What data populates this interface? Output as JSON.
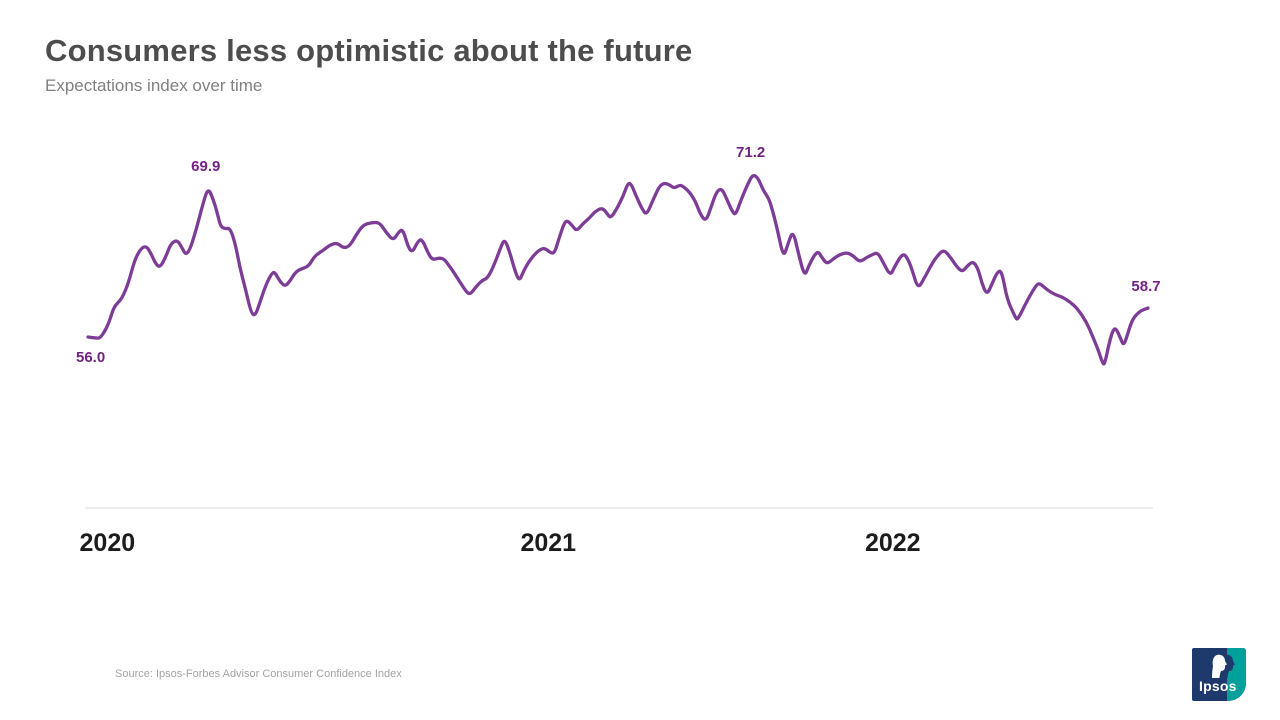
{
  "header": {
    "title": "Consumers less optimistic about the future",
    "subtitle": "Expectations index over time"
  },
  "chart_data": {
    "type": "line",
    "title": "Consumers less optimistic about the future",
    "subtitle": "Expectations index over time",
    "series_name": "Expectations index",
    "line_color": "#7d3c96",
    "annotation_color": "#722282",
    "axis_color": "#d9d9d9",
    "legend": "none",
    "grid": false,
    "y_range_shown": [
      53.4,
      71.2
    ],
    "x_axis": {
      "labels": [
        {
          "label": "2020",
          "pos": -0.008
        },
        {
          "label": "2021",
          "pos": 0.408
        },
        {
          "label": "2022",
          "pos": 0.733
        }
      ]
    },
    "annotations": [
      {
        "label": "56.0",
        "pos": 0.0,
        "value": 56.0,
        "placement": "below-left"
      },
      {
        "label": "69.9",
        "pos": 0.113,
        "value": 69.9,
        "placement": "above"
      },
      {
        "label": "71.2",
        "pos": 0.627,
        "value": 71.2,
        "placement": "above"
      },
      {
        "label": "58.7",
        "pos": 1.0,
        "value": 58.7,
        "placement": "above"
      }
    ],
    "points": [
      [
        0.0,
        56.0
      ],
      [
        0.007,
        55.9
      ],
      [
        0.012,
        55.9
      ],
      [
        0.019,
        57.1
      ],
      [
        0.024,
        58.7
      ],
      [
        0.028,
        59.2
      ],
      [
        0.032,
        59.6
      ],
      [
        0.038,
        61.0
      ],
      [
        0.044,
        63.2
      ],
      [
        0.05,
        64.3
      ],
      [
        0.055,
        64.5
      ],
      [
        0.059,
        63.9
      ],
      [
        0.064,
        62.8
      ],
      [
        0.068,
        62.5
      ],
      [
        0.073,
        63.4
      ],
      [
        0.078,
        64.7
      ],
      [
        0.084,
        65.1
      ],
      [
        0.089,
        64.3
      ],
      [
        0.092,
        63.7
      ],
      [
        0.096,
        64.1
      ],
      [
        0.102,
        66.0
      ],
      [
        0.108,
        68.3
      ],
      [
        0.113,
        69.9
      ],
      [
        0.117,
        69.2
      ],
      [
        0.122,
        67.6
      ],
      [
        0.125,
        66.3
      ],
      [
        0.13,
        66.1
      ],
      [
        0.134,
        66.2
      ],
      [
        0.139,
        64.7
      ],
      [
        0.143,
        62.6
      ],
      [
        0.148,
        60.7
      ],
      [
        0.154,
        58.2
      ],
      [
        0.158,
        58.0
      ],
      [
        0.163,
        59.5
      ],
      [
        0.168,
        60.9
      ],
      [
        0.173,
        61.9
      ],
      [
        0.176,
        62.1
      ],
      [
        0.181,
        61.2
      ],
      [
        0.186,
        60.7
      ],
      [
        0.191,
        61.3
      ],
      [
        0.196,
        62.1
      ],
      [
        0.202,
        62.4
      ],
      [
        0.208,
        62.6
      ],
      [
        0.214,
        63.6
      ],
      [
        0.222,
        64.1
      ],
      [
        0.228,
        64.6
      ],
      [
        0.235,
        64.8
      ],
      [
        0.241,
        64.3
      ],
      [
        0.247,
        64.5
      ],
      [
        0.254,
        65.7
      ],
      [
        0.26,
        66.5
      ],
      [
        0.268,
        66.7
      ],
      [
        0.275,
        66.7
      ],
      [
        0.281,
        65.8
      ],
      [
        0.288,
        65.0
      ],
      [
        0.293,
        65.8
      ],
      [
        0.297,
        66.1
      ],
      [
        0.302,
        64.4
      ],
      [
        0.306,
        63.9
      ],
      [
        0.311,
        64.9
      ],
      [
        0.315,
        65.2
      ],
      [
        0.321,
        63.8
      ],
      [
        0.325,
        63.2
      ],
      [
        0.331,
        63.4
      ],
      [
        0.336,
        63.3
      ],
      [
        0.342,
        62.5
      ],
      [
        0.348,
        61.6
      ],
      [
        0.355,
        60.5
      ],
      [
        0.36,
        59.9
      ],
      [
        0.366,
        60.7
      ],
      [
        0.372,
        61.3
      ],
      [
        0.377,
        61.5
      ],
      [
        0.383,
        62.7
      ],
      [
        0.389,
        64.3
      ],
      [
        0.393,
        65.2
      ],
      [
        0.398,
        63.9
      ],
      [
        0.403,
        62.1
      ],
      [
        0.407,
        61.2
      ],
      [
        0.411,
        62.2
      ],
      [
        0.417,
        63.2
      ],
      [
        0.423,
        63.9
      ],
      [
        0.427,
        64.2
      ],
      [
        0.431,
        64.3
      ],
      [
        0.436,
        63.9
      ],
      [
        0.44,
        63.8
      ],
      [
        0.444,
        65.1
      ],
      [
        0.449,
        66.6
      ],
      [
        0.452,
        66.9
      ],
      [
        0.457,
        66.4
      ],
      [
        0.461,
        65.9
      ],
      [
        0.467,
        66.6
      ],
      [
        0.473,
        67.1
      ],
      [
        0.478,
        67.7
      ],
      [
        0.485,
        68.1
      ],
      [
        0.49,
        67.5
      ],
      [
        0.493,
        67.1
      ],
      [
        0.499,
        68.0
      ],
      [
        0.505,
        69.2
      ],
      [
        0.509,
        70.3
      ],
      [
        0.512,
        70.4
      ],
      [
        0.517,
        69.2
      ],
      [
        0.523,
        67.9
      ],
      [
        0.527,
        67.4
      ],
      [
        0.533,
        68.8
      ],
      [
        0.539,
        70.1
      ],
      [
        0.544,
        70.4
      ],
      [
        0.549,
        70.2
      ],
      [
        0.553,
        69.9
      ],
      [
        0.558,
        70.2
      ],
      [
        0.561,
        70.1
      ],
      [
        0.567,
        69.6
      ],
      [
        0.573,
        68.7
      ],
      [
        0.578,
        67.4
      ],
      [
        0.583,
        66.8
      ],
      [
        0.588,
        68.2
      ],
      [
        0.593,
        69.6
      ],
      [
        0.598,
        69.9
      ],
      [
        0.603,
        68.8
      ],
      [
        0.608,
        67.7
      ],
      [
        0.611,
        67.4
      ],
      [
        0.616,
        68.8
      ],
      [
        0.622,
        70.2
      ],
      [
        0.627,
        71.2
      ],
      [
        0.632,
        70.9
      ],
      [
        0.637,
        69.7
      ],
      [
        0.642,
        69.0
      ],
      [
        0.645,
        68.1
      ],
      [
        0.65,
        66.2
      ],
      [
        0.656,
        63.4
      ],
      [
        0.66,
        64.6
      ],
      [
        0.665,
        66.0
      ],
      [
        0.67,
        63.9
      ],
      [
        0.676,
        61.6
      ],
      [
        0.68,
        62.7
      ],
      [
        0.688,
        64.1
      ],
      [
        0.692,
        63.5
      ],
      [
        0.697,
        62.8
      ],
      [
        0.703,
        63.3
      ],
      [
        0.709,
        63.7
      ],
      [
        0.716,
        63.9
      ],
      [
        0.722,
        63.6
      ],
      [
        0.728,
        63.0
      ],
      [
        0.734,
        63.4
      ],
      [
        0.74,
        63.7
      ],
      [
        0.745,
        63.9
      ],
      [
        0.75,
        63.0
      ],
      [
        0.757,
        61.7
      ],
      [
        0.761,
        62.6
      ],
      [
        0.769,
        63.9
      ],
      [
        0.774,
        63.2
      ],
      [
        0.778,
        62.1
      ],
      [
        0.783,
        60.5
      ],
      [
        0.789,
        61.5
      ],
      [
        0.797,
        63.0
      ],
      [
        0.804,
        63.9
      ],
      [
        0.808,
        64.1
      ],
      [
        0.814,
        63.4
      ],
      [
        0.82,
        62.5
      ],
      [
        0.825,
        62.1
      ],
      [
        0.829,
        62.6
      ],
      [
        0.835,
        63.1
      ],
      [
        0.84,
        62.3
      ],
      [
        0.843,
        61.1
      ],
      [
        0.848,
        59.9
      ],
      [
        0.853,
        61.0
      ],
      [
        0.858,
        62.1
      ],
      [
        0.862,
        62.2
      ],
      [
        0.867,
        59.5
      ],
      [
        0.875,
        57.8
      ],
      [
        0.877,
        57.6
      ],
      [
        0.884,
        59.0
      ],
      [
        0.89,
        60.1
      ],
      [
        0.895,
        60.9
      ],
      [
        0.898,
        61.0
      ],
      [
        0.904,
        60.5
      ],
      [
        0.908,
        60.2
      ],
      [
        0.914,
        59.9
      ],
      [
        0.92,
        59.7
      ],
      [
        0.926,
        59.3
      ],
      [
        0.933,
        58.7
      ],
      [
        0.942,
        57.4
      ],
      [
        0.948,
        56.0
      ],
      [
        0.953,
        54.8
      ],
      [
        0.957,
        53.6
      ],
      [
        0.959,
        53.4
      ],
      [
        0.963,
        55.3
      ],
      [
        0.967,
        56.7
      ],
      [
        0.97,
        56.8
      ],
      [
        0.974,
        55.9
      ],
      [
        0.977,
        55.2
      ],
      [
        0.98,
        56.0
      ],
      [
        0.985,
        57.6
      ],
      [
        0.99,
        58.2
      ],
      [
        0.994,
        58.5
      ],
      [
        1.0,
        58.7
      ]
    ]
  },
  "footer": {
    "source": "Source: Ipsos-Forbes Advisor Consumer Confidence Index",
    "logo_text": "Ipsos"
  }
}
